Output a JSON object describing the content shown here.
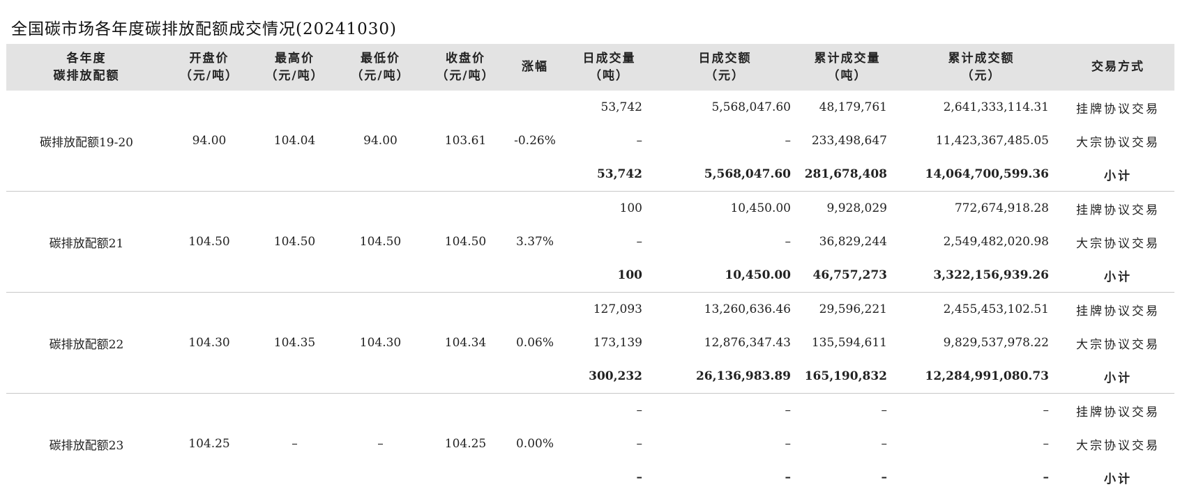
{
  "title": "全国碳市场各年度碳排放配额成交情况(20241030)",
  "headers": [
    {
      "l1": "各年度",
      "l2": "碳排放配额"
    },
    {
      "l1": "开盘价",
      "l2": "（元/吨）"
    },
    {
      "l1": "最高价",
      "l2": "（元/吨）"
    },
    {
      "l1": "最低价",
      "l2": "（元/吨）"
    },
    {
      "l1": "收盘价",
      "l2": "（元/吨）"
    },
    {
      "l1": "涨幅",
      "l2": ""
    },
    {
      "l1": "日成交量",
      "l2": "（吨）"
    },
    {
      "l1": "日成交额",
      "l2": "（元）"
    },
    {
      "l1": "累计成交量",
      "l2": "（吨）"
    },
    {
      "l1": "累计成交额",
      "l2": "（元）"
    },
    {
      "l1": "交易方式",
      "l2": ""
    }
  ],
  "groups": [
    {
      "name": "碳排放配额19-20",
      "open": "94.00",
      "high": "104.04",
      "low": "94.00",
      "close": "103.61",
      "change": "-0.26%",
      "rows": [
        {
          "dv": "53,742",
          "da": "5,568,047.60",
          "cv": "48,179,761",
          "ca": "2,641,333,114.31",
          "mode": "挂牌协议交易"
        },
        {
          "dv": "–",
          "da": "–",
          "cv": "233,498,647",
          "ca": "11,423,367,485.05",
          "mode": "大宗协议交易"
        },
        {
          "dv": "53,742",
          "da": "5,568,047.60",
          "cv": "281,678,408",
          "ca": "14,064,700,599.36",
          "mode": "小计"
        }
      ]
    },
    {
      "name": "碳排放配额21",
      "open": "104.50",
      "high": "104.50",
      "low": "104.50",
      "close": "104.50",
      "change": "3.37%",
      "rows": [
        {
          "dv": "100",
          "da": "10,450.00",
          "cv": "9,928,029",
          "ca": "772,674,918.28",
          "mode": "挂牌协议交易"
        },
        {
          "dv": "–",
          "da": "–",
          "cv": "36,829,244",
          "ca": "2,549,482,020.98",
          "mode": "大宗协议交易"
        },
        {
          "dv": "100",
          "da": "10,450.00",
          "cv": "46,757,273",
          "ca": "3,322,156,939.26",
          "mode": "小计"
        }
      ]
    },
    {
      "name": "碳排放配额22",
      "open": "104.30",
      "high": "104.35",
      "low": "104.30",
      "close": "104.34",
      "change": "0.06%",
      "rows": [
        {
          "dv": "127,093",
          "da": "13,260,636.46",
          "cv": "29,596,221",
          "ca": "2,455,453,102.51",
          "mode": "挂牌协议交易"
        },
        {
          "dv": "173,139",
          "da": "12,876,347.43",
          "cv": "135,594,611",
          "ca": "9,829,537,978.22",
          "mode": "大宗协议交易"
        },
        {
          "dv": "300,232",
          "da": "26,136,983.89",
          "cv": "165,190,832",
          "ca": "12,284,991,080.73",
          "mode": "小计"
        }
      ]
    },
    {
      "name": "碳排放配额23",
      "open": "104.25",
      "high": "–",
      "low": "–",
      "close": "104.25",
      "change": "0.00%",
      "rows": [
        {
          "dv": "–",
          "da": "–",
          "cv": "–",
          "ca": "–",
          "mode": "挂牌协议交易"
        },
        {
          "dv": "–",
          "da": "–",
          "cv": "–",
          "ca": "–",
          "mode": "大宗协议交易"
        },
        {
          "dv": "–",
          "da": "–",
          "cv": "–",
          "ca": "–",
          "mode": "小计"
        }
      ]
    }
  ]
}
